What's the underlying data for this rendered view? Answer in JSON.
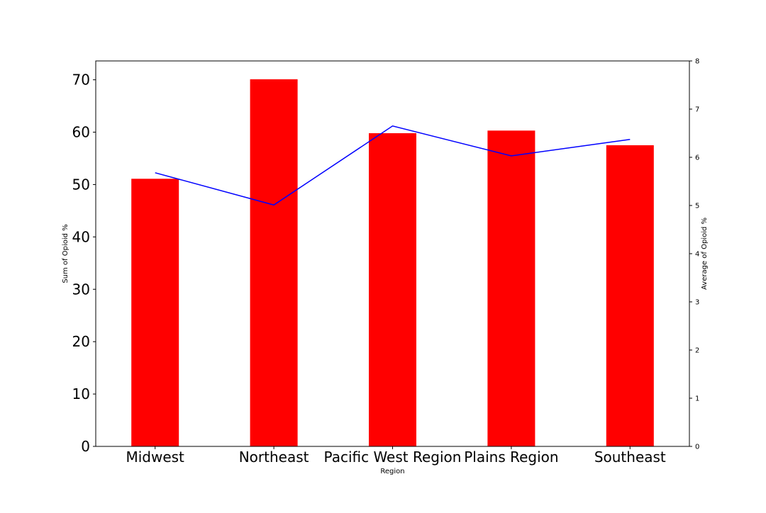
{
  "chart_data": {
    "type": "bar",
    "categories": [
      "Midwest",
      "Northeast",
      "Pacific West Region",
      "Plains Region",
      "Southeast"
    ],
    "series": [
      {
        "type": "bar",
        "axis": "left",
        "color": "#ff0000",
        "values": [
          51.1,
          70.1,
          59.8,
          60.3,
          57.5
        ]
      },
      {
        "type": "line",
        "axis": "right",
        "color": "#0000ff",
        "values": [
          5.68,
          5.01,
          6.65,
          6.03,
          6.37
        ]
      }
    ],
    "xlabel": "Region",
    "ylabel": "Sum of Opioid %",
    "y2label": "Average of Opioid %",
    "ylim": [
      0,
      73.6
    ],
    "y2lim": [
      0,
      8
    ],
    "yticks": [
      0,
      10,
      20,
      30,
      40,
      50,
      60,
      70
    ],
    "y2ticks": [
      0,
      1,
      2,
      3,
      4,
      5,
      6,
      7,
      8
    ],
    "grid": false,
    "legend": "none"
  }
}
